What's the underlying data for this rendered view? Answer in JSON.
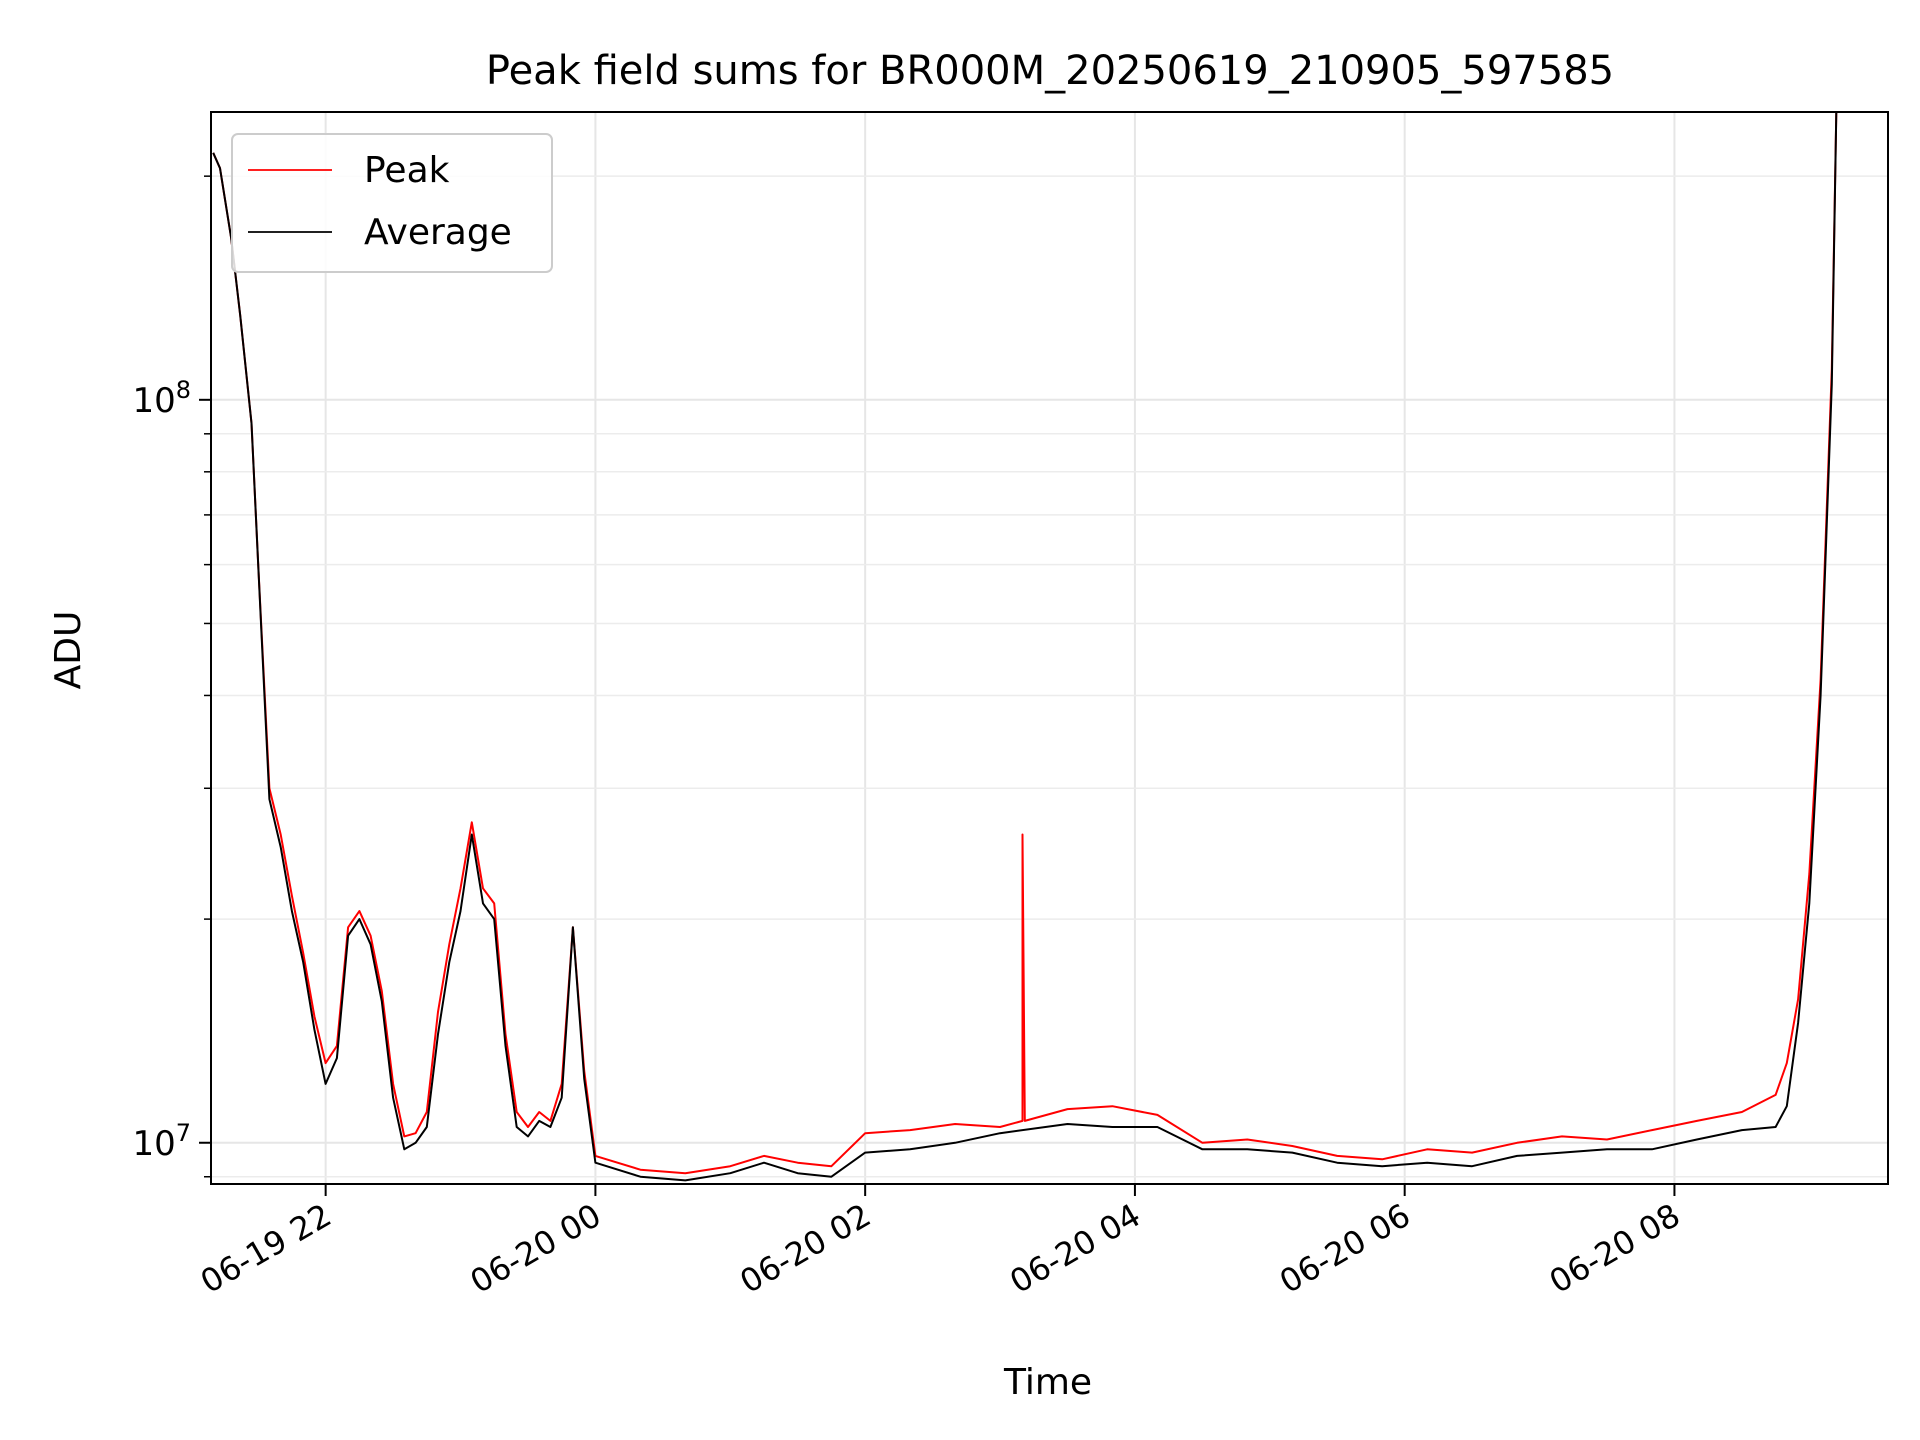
{
  "chart_data": {
    "type": "line",
    "title": "Peak field sums for BR000M_20250619_210905_597585",
    "xlabel": "Time",
    "ylabel": "ADU",
    "yscale": "log",
    "grid": true,
    "legend_position": "top-left",
    "xlim": [
      "2025-06-19 21:09",
      "2025-06-20 09:35"
    ],
    "ylim": [
      8800000,
      244000000
    ],
    "x_ticks": [
      "06-19 22",
      "06-20 00",
      "06-20 02",
      "06-20 04",
      "06-20 06",
      "06-20 08"
    ],
    "y_ticks": [
      {
        "base": "10",
        "exp": "7",
        "value": 10000000
      },
      {
        "base": "10",
        "exp": "8",
        "value": 100000000
      }
    ],
    "series": [
      {
        "name": "Peak",
        "color": "#ff0000",
        "time": [
          "2025-06-19 21:10",
          "2025-06-19 21:13",
          "2025-06-19 21:18",
          "2025-06-19 21:22",
          "2025-06-19 21:27",
          "2025-06-19 21:30",
          "2025-06-19 21:35",
          "2025-06-19 21:40",
          "2025-06-19 21:45",
          "2025-06-19 21:50",
          "2025-06-19 21:55",
          "2025-06-19 22:00",
          "2025-06-19 22:05",
          "2025-06-19 22:10",
          "2025-06-19 22:15",
          "2025-06-19 22:20",
          "2025-06-19 22:25",
          "2025-06-19 22:30",
          "2025-06-19 22:35",
          "2025-06-19 22:40",
          "2025-06-19 22:45",
          "2025-06-19 22:50",
          "2025-06-19 22:55",
          "2025-06-19 23:00",
          "2025-06-19 23:05",
          "2025-06-19 23:10",
          "2025-06-19 23:15",
          "2025-06-19 23:20",
          "2025-06-19 23:25",
          "2025-06-19 23:30",
          "2025-06-19 23:35",
          "2025-06-19 23:40",
          "2025-06-19 23:45",
          "2025-06-19 23:50",
          "2025-06-19 23:55",
          "2025-06-20 00:00",
          "2025-06-20 00:20",
          "2025-06-20 00:40",
          "2025-06-20 01:00",
          "2025-06-20 01:15",
          "2025-06-20 01:30",
          "2025-06-20 01:45",
          "2025-06-20 02:00",
          "2025-06-20 02:20",
          "2025-06-20 02:40",
          "2025-06-20 03:00",
          "2025-06-20 03:10",
          "2025-06-20 03:10",
          "2025-06-20 03:11",
          "2025-06-20 03:30",
          "2025-06-20 03:50",
          "2025-06-20 04:10",
          "2025-06-20 04:30",
          "2025-06-20 04:50",
          "2025-06-20 05:10",
          "2025-06-20 05:30",
          "2025-06-20 05:50",
          "2025-06-20 06:10",
          "2025-06-20 06:30",
          "2025-06-20 06:50",
          "2025-06-20 07:10",
          "2025-06-20 07:30",
          "2025-06-20 07:50",
          "2025-06-20 08:10",
          "2025-06-20 08:30",
          "2025-06-20 08:45",
          "2025-06-20 08:50",
          "2025-06-20 08:55",
          "2025-06-20 09:00",
          "2025-06-20 09:05",
          "2025-06-20 09:10",
          "2025-06-20 09:12"
        ],
        "values": [
          215000000,
          205000000,
          165000000,
          130000000,
          93000000,
          60000000,
          30000000,
          26000000,
          21500000,
          18000000,
          14800000,
          12800000,
          13500000,
          19500000,
          20500000,
          19000000,
          16000000,
          12000000,
          10200000,
          10300000,
          11000000,
          15000000,
          18500000,
          22000000,
          27000000,
          22000000,
          21000000,
          14000000,
          11000000,
          10500000,
          11000000,
          10700000,
          12000000,
          19500000,
          12500000,
          9600000,
          9200000,
          9100000,
          9300000,
          9600000,
          9400000,
          9300000,
          10300000,
          10400000,
          10600000,
          10500000,
          10700000,
          26000000,
          10700000,
          11100000,
          11200000,
          10900000,
          10000000,
          10100000,
          9900000,
          9600000,
          9500000,
          9800000,
          9700000,
          10000000,
          10200000,
          10100000,
          10400000,
          10700000,
          11000000,
          11600000,
          12800000,
          15600000,
          23000000,
          42000000,
          110000000,
          244000000
        ]
      },
      {
        "name": "Average",
        "color": "#000000",
        "time": [
          "2025-06-19 21:10",
          "2025-06-19 21:13",
          "2025-06-19 21:18",
          "2025-06-19 21:22",
          "2025-06-19 21:27",
          "2025-06-19 21:30",
          "2025-06-19 21:35",
          "2025-06-19 21:40",
          "2025-06-19 21:45",
          "2025-06-19 21:50",
          "2025-06-19 21:55",
          "2025-06-19 22:00",
          "2025-06-19 22:05",
          "2025-06-19 22:10",
          "2025-06-19 22:15",
          "2025-06-19 22:20",
          "2025-06-19 22:25",
          "2025-06-19 22:30",
          "2025-06-19 22:35",
          "2025-06-19 22:40",
          "2025-06-19 22:45",
          "2025-06-19 22:50",
          "2025-06-19 22:55",
          "2025-06-19 23:00",
          "2025-06-19 23:05",
          "2025-06-19 23:10",
          "2025-06-19 23:15",
          "2025-06-19 23:20",
          "2025-06-19 23:25",
          "2025-06-19 23:30",
          "2025-06-19 23:35",
          "2025-06-19 23:40",
          "2025-06-19 23:45",
          "2025-06-19 23:50",
          "2025-06-19 23:55",
          "2025-06-20 00:00",
          "2025-06-20 00:20",
          "2025-06-20 00:40",
          "2025-06-20 01:00",
          "2025-06-20 01:15",
          "2025-06-20 01:30",
          "2025-06-20 01:45",
          "2025-06-20 02:00",
          "2025-06-20 02:20",
          "2025-06-20 02:40",
          "2025-06-20 03:00",
          "2025-06-20 03:30",
          "2025-06-20 03:50",
          "2025-06-20 04:10",
          "2025-06-20 04:30",
          "2025-06-20 04:50",
          "2025-06-20 05:10",
          "2025-06-20 05:30",
          "2025-06-20 05:50",
          "2025-06-20 06:10",
          "2025-06-20 06:30",
          "2025-06-20 06:50",
          "2025-06-20 07:10",
          "2025-06-20 07:30",
          "2025-06-20 07:50",
          "2025-06-20 08:10",
          "2025-06-20 08:30",
          "2025-06-20 08:45",
          "2025-06-20 08:50",
          "2025-06-20 08:55",
          "2025-06-20 09:00",
          "2025-06-20 09:05",
          "2025-06-20 09:10",
          "2025-06-20 09:12"
        ],
        "values": [
          215000000,
          205000000,
          165000000,
          130000000,
          93000000,
          60000000,
          29000000,
          25000000,
          20500000,
          17500000,
          14200000,
          12000000,
          13000000,
          19000000,
          20000000,
          18500000,
          15500000,
          11500000,
          9800000,
          10000000,
          10500000,
          14000000,
          17500000,
          20500000,
          26000000,
          21000000,
          20000000,
          13500000,
          10500000,
          10200000,
          10700000,
          10500000,
          11500000,
          19500000,
          12200000,
          9400000,
          9000000,
          8900000,
          9100000,
          9400000,
          9100000,
          9000000,
          9700000,
          9800000,
          10000000,
          10300000,
          10600000,
          10500000,
          10500000,
          9800000,
          9800000,
          9700000,
          9400000,
          9300000,
          9400000,
          9300000,
          9600000,
          9700000,
          9800000,
          9800000,
          10100000,
          10400000,
          10500000,
          11200000,
          14500000,
          21000000,
          40000000,
          105000000,
          244000000
        ]
      }
    ]
  }
}
